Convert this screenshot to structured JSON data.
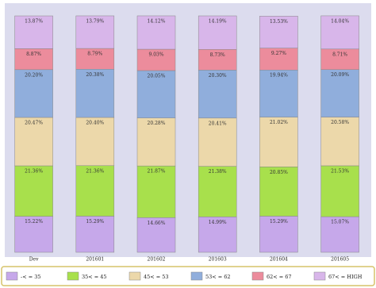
{
  "chart_data": {
    "type": "stacked_bar_100",
    "categories": [
      "Dev",
      "201601",
      "201602",
      "201603",
      "201604",
      "201605"
    ],
    "ylim": [
      0,
      100
    ],
    "legend": "bottom",
    "series": [
      {
        "name": "-< = 35",
        "color": "#c6a8ea",
        "values": [
          15.22,
          15.29,
          14.66,
          14.99,
          15.29,
          15.07
        ],
        "value_labels": [
          "15.22%",
          "15.29%",
          "14.66%",
          "14.99%",
          "15.29%",
          "15.07%"
        ]
      },
      {
        "name": "35< = 45",
        "color": "#a8e04c",
        "values": [
          21.36,
          21.36,
          21.87,
          21.38,
          20.85,
          21.53
        ],
        "value_labels": [
          "21.36%",
          "21.36%",
          "21.87%",
          "21.38%",
          "20.85%",
          "21.53%"
        ]
      },
      {
        "name": "45< = 53",
        "color": "#ecd8aa",
        "values": [
          20.47,
          20.4,
          20.28,
          20.41,
          21.02,
          20.58
        ],
        "value_labels": [
          "20.47%",
          "20.40%",
          "20.28%",
          "20.41%",
          "21.02%",
          "20.58%"
        ]
      },
      {
        "name": "53< = 62",
        "color": "#90aedc",
        "values": [
          20.2,
          20.38,
          20.05,
          20.3,
          19.94,
          20.09
        ],
        "value_labels": [
          "20.20%",
          "20.38%",
          "20.05%",
          "20.30%",
          "19.94%",
          "20.09%"
        ]
      },
      {
        "name": "62< = 67",
        "color": "#ec8c9c",
        "values": [
          8.87,
          8.79,
          9.03,
          8.73,
          9.27,
          8.71
        ],
        "value_labels": [
          "8.87%",
          "8.79%",
          "9.03%",
          "8.73%",
          "9.27%",
          "8.71%"
        ]
      },
      {
        "name": "67< = HIGH",
        "color": "#d8b6ea",
        "values": [
          13.87,
          13.79,
          14.12,
          14.19,
          13.53,
          14.04
        ],
        "value_labels": [
          "13.87%",
          "13.79%",
          "14.12%",
          "14.19%",
          "13.53%",
          "14.04%"
        ]
      }
    ]
  }
}
